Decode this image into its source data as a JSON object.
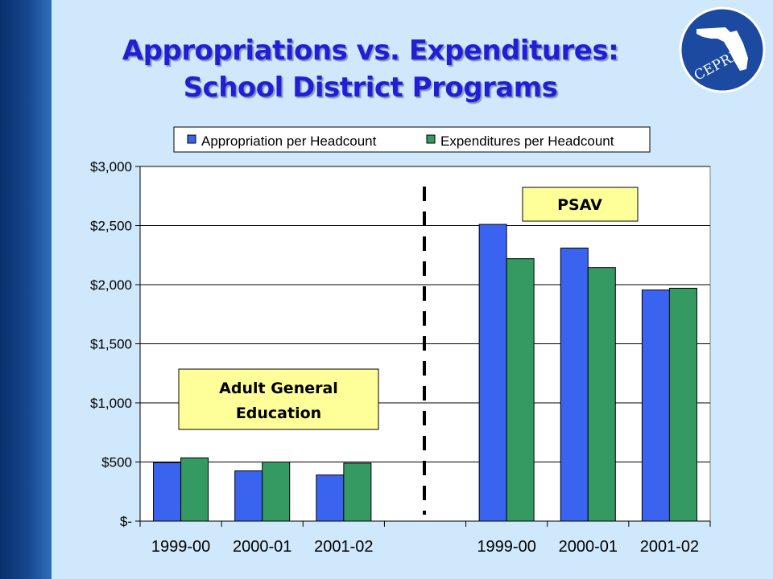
{
  "slide": {
    "title_line1": "Appropriations vs. Expenditures:",
    "title_line2": "School District Programs",
    "logo_text": "CEPRI"
  },
  "colors": {
    "appropriation": "#3a64f0",
    "expenditure": "#349a62",
    "annotation_fill": "#ffff99",
    "plot_background": "#ffffff",
    "title": "#1f1fd6"
  },
  "chart_data": {
    "type": "bar",
    "title": "",
    "xlabel": "",
    "ylabel": "",
    "ylim": [
      0,
      3000
    ],
    "y_ticks": [
      {
        "value": 0,
        "label": "$-"
      },
      {
        "value": 500,
        "label": "$500"
      },
      {
        "value": 1000,
        "label": "$1,000"
      },
      {
        "value": 1500,
        "label": "$1,500"
      },
      {
        "value": 2000,
        "label": "$2,000"
      },
      {
        "value": 2500,
        "label": "$2,500"
      },
      {
        "value": 3000,
        "label": "$3,000"
      }
    ],
    "grid": true,
    "legend_position": "top",
    "categories": [
      "1999-00",
      "2000-01",
      "2001-02",
      "",
      "1999-00",
      "2000-01",
      "2001-02"
    ],
    "series": [
      {
        "name": "Appropriation per Headcount",
        "values": [
          495,
          425,
          390,
          null,
          2510,
          2310,
          1955
        ]
      },
      {
        "name": "Expenditures per Headcount",
        "values": [
          535,
          500,
          490,
          null,
          2220,
          2145,
          1970
        ]
      }
    ],
    "annotations": [
      {
        "lines": [
          "Adult General",
          "Education"
        ],
        "group": "left"
      },
      {
        "lines": [
          "PSAV"
        ],
        "group": "right"
      }
    ],
    "divider": {
      "after_category_index": 2,
      "style": "dashed"
    }
  }
}
